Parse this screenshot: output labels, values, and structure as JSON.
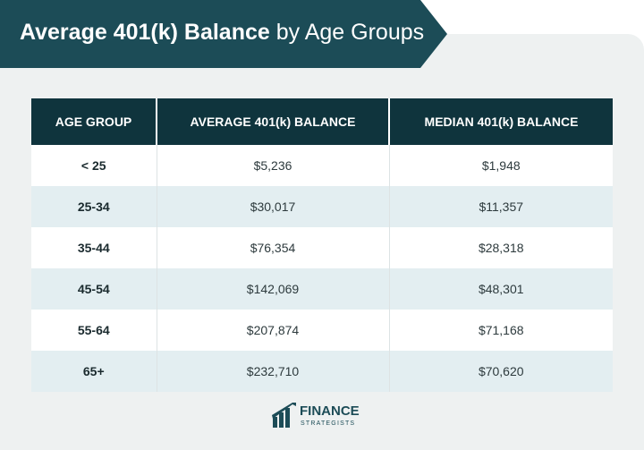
{
  "header": {
    "title_bold": "Average 401(k) Balance",
    "title_rest": "by Age Groups"
  },
  "table": {
    "header": [
      "AGE GROUP",
      "AVERAGE 401(k) BALANCE",
      "MEDIAN 401(k) BALANCE"
    ],
    "rows": [
      [
        "< 25",
        "$5,236",
        "$1,948"
      ],
      [
        "25-34",
        "$30,017",
        "$11,357"
      ],
      [
        "35-44",
        "$76,354",
        "$28,318"
      ],
      [
        "45-54",
        "$142,069",
        "$48,301"
      ],
      [
        "55-64",
        "$207,874",
        "$71,168"
      ],
      [
        "65+",
        "$232,710",
        "$70,620"
      ]
    ]
  },
  "logo": {
    "name": "FINANCE",
    "tagline": "STRATEGISTS"
  }
}
